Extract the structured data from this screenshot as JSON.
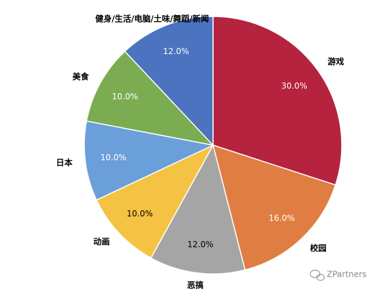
{
  "chart_data": {
    "type": "pie",
    "categories": [
      "游戏",
      "校园",
      "恶搞",
      "动画",
      "日本",
      "美食",
      "健身/生活/电脑/土味/舞蹈/新闻"
    ],
    "values": [
      30,
      16,
      12,
      10,
      10,
      10,
      12
    ],
    "value_labels": [
      "30.0%",
      "16.0%",
      "12.0%",
      "10.0%",
      "10.0%",
      "10.0%",
      "12.0%"
    ],
    "colors": [
      "#b5233f",
      "#e07d42",
      "#a5a5a5",
      "#f4c343",
      "#6b9fd9",
      "#7bac52",
      "#4b73c0"
    ]
  },
  "watermark": "ZPartners"
}
